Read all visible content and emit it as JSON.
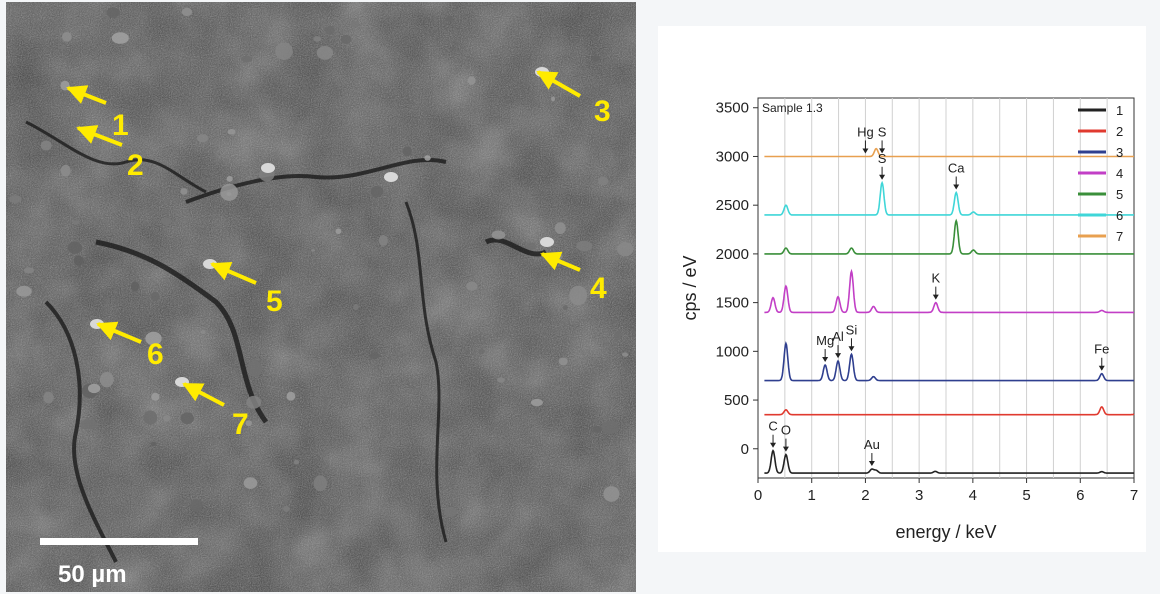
{
  "sem": {
    "scale_bar_label": "50 µm",
    "colors": {
      "marker": "#ffeb00",
      "background": "#2d2d2d"
    },
    "markers": [
      "1",
      "2",
      "3",
      "4",
      "5",
      "6",
      "7"
    ]
  },
  "chart_data": {
    "type": "line",
    "title": "",
    "sample_label": "Sample 1.3",
    "xlabel": "energy / keV",
    "ylabel": "cps / eV",
    "xlim": [
      0,
      7
    ],
    "ylim": [
      -300,
      3600
    ],
    "xticks": [
      0,
      1,
      2,
      3,
      4,
      5,
      6,
      7
    ],
    "yticks": [
      0,
      500,
      1000,
      1500,
      2000,
      2500,
      3000,
      3500
    ],
    "grid": "vertical",
    "legend_position": "top-right",
    "series": [
      {
        "name": "1",
        "color": "#222222",
        "baseline": -250,
        "peaks": [
          [
            0.28,
            230
          ],
          [
            0.52,
            190
          ],
          [
            2.12,
            40
          ],
          [
            2.2,
            28
          ],
          [
            3.3,
            18
          ],
          [
            6.4,
            15
          ]
        ]
      },
      {
        "name": "2",
        "color": "#e03a2f",
        "baseline": 350,
        "peaks": [
          [
            0.52,
            50
          ],
          [
            6.4,
            80
          ],
          [
            7.06,
            30
          ]
        ]
      },
      {
        "name": "3",
        "color": "#2f3f8f",
        "baseline": 700,
        "peaks": [
          [
            0.52,
            380
          ],
          [
            1.25,
            160
          ],
          [
            1.49,
            200
          ],
          [
            1.74,
            270
          ],
          [
            2.15,
            40
          ],
          [
            6.4,
            70
          ]
        ]
      },
      {
        "name": "4",
        "color": "#c23fc6",
        "baseline": 1400,
        "peaks": [
          [
            0.28,
            150
          ],
          [
            0.52,
            270
          ],
          [
            1.49,
            160
          ],
          [
            1.74,
            420
          ],
          [
            2.15,
            60
          ],
          [
            3.31,
            100
          ],
          [
            6.4,
            20
          ]
        ]
      },
      {
        "name": "5",
        "color": "#3a8f3a",
        "baseline": 2000,
        "peaks": [
          [
            0.52,
            60
          ],
          [
            1.74,
            60
          ],
          [
            3.69,
            340
          ],
          [
            4.01,
            40
          ]
        ]
      },
      {
        "name": "6",
        "color": "#3fd6d8",
        "baseline": 2400,
        "peaks": [
          [
            0.52,
            100
          ],
          [
            2.31,
            330
          ],
          [
            3.69,
            230
          ],
          [
            4.01,
            30
          ]
        ]
      },
      {
        "name": "7",
        "color": "#e8a050",
        "baseline": 3000,
        "peaks": [
          [
            2.2,
            80
          ]
        ]
      }
    ],
    "annotations": [
      {
        "text": "C",
        "x": 0.28,
        "series": "1"
      },
      {
        "text": "O",
        "x": 0.52,
        "series": "1"
      },
      {
        "text": "Au",
        "x": 2.12,
        "series": "1"
      },
      {
        "text": "Mg",
        "x": 1.25,
        "series": "3"
      },
      {
        "text": "Al",
        "x": 1.49,
        "series": "3"
      },
      {
        "text": "Si",
        "x": 1.74,
        "series": "3"
      },
      {
        "text": "Fe",
        "x": 6.4,
        "series": "3"
      },
      {
        "text": "K",
        "x": 3.31,
        "series": "4"
      },
      {
        "text": "S",
        "x": 2.31,
        "series": "6"
      },
      {
        "text": "Ca",
        "x": 3.69,
        "series": "6"
      },
      {
        "text": "Hg",
        "x": 2.0,
        "series": "7"
      },
      {
        "text": "S",
        "x": 2.31,
        "series": "7"
      }
    ]
  }
}
